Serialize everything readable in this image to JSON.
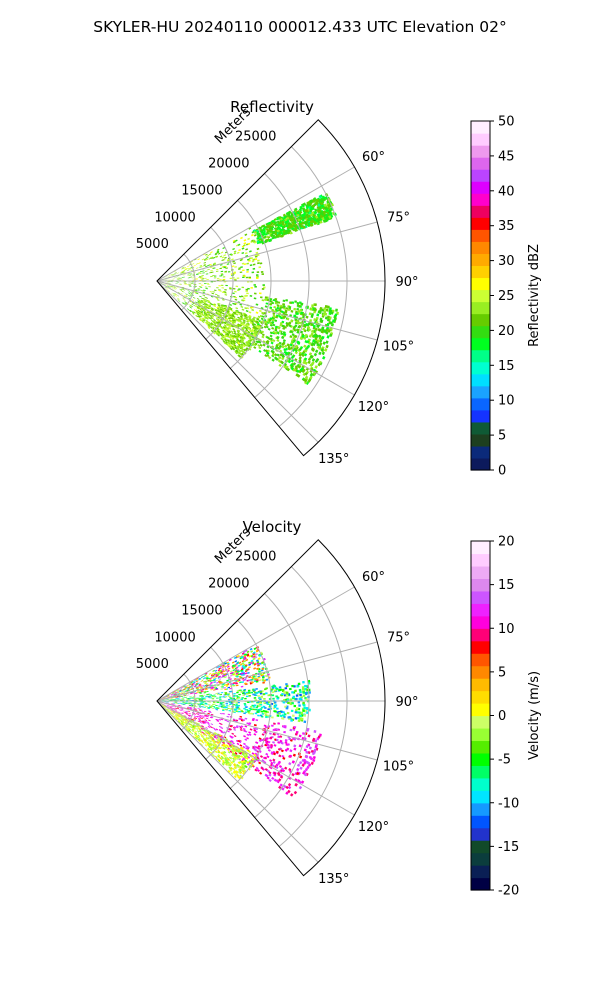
{
  "suptitle": "SKYLER-HU  20240110  000012.433 UTC Elevation 02°",
  "panel_labels": {
    "range_axis": "Meters"
  },
  "colors": {
    "grid": "#b0b0b0",
    "frame": "#000000",
    "reflectivity_cmap": [
      "#0c1a5c",
      "#0b2a7a",
      "#1d3f1f",
      "#0f5a35",
      "#1533ff",
      "#0a66ff",
      "#1aa3ff",
      "#00dfff",
      "#00ffd0",
      "#00ff88",
      "#00ff20",
      "#33dd11",
      "#66cc00",
      "#99ee22",
      "#ccff33",
      "#ffff00",
      "#ffd000",
      "#ffaa00",
      "#ff8800",
      "#ff5500",
      "#ff0000",
      "#ee0060",
      "#ff00cc",
      "#dd00ff",
      "#bb44ff",
      "#dd66ee",
      "#ee99ee",
      "#ffccff",
      "#ffeeff"
    ],
    "velocity_cmap": [
      "#000044",
      "#0a1f55",
      "#0b3d3d",
      "#114a2a",
      "#2233cc",
      "#0055ff",
      "#1599ff",
      "#00e5ff",
      "#00ffcc",
      "#00ff66",
      "#00ff00",
      "#55ee00",
      "#99ff33",
      "#ccff66",
      "#ffff00",
      "#ffdd00",
      "#ffbb00",
      "#ff8800",
      "#ff5500",
      "#ff0000",
      "#ff0077",
      "#ff00dd",
      "#ee22ff",
      "#cc55ff",
      "#dd88ee",
      "#eeaaf5",
      "#ffccff",
      "#ffeeff"
    ]
  },
  "chart_data": [
    {
      "type": "heatmap",
      "title": "Reflectivity",
      "projection": "polar sector",
      "theta_ticks": [
        "60°",
        "75°",
        "90°",
        "105°",
        "120°",
        "135°"
      ],
      "theta_range_deg": [
        45,
        140
      ],
      "r_ticks": [
        "5000",
        "10000",
        "15000",
        "20000",
        "25000"
      ],
      "r_range": [
        0,
        30000
      ],
      "grid": true,
      "colorbar": {
        "label": "Reflectivity dBZ",
        "ticks": [
          "0",
          "5",
          "10",
          "15",
          "20",
          "25",
          "30",
          "35",
          "40",
          "45",
          "50"
        ],
        "range": [
          0,
          50
        ]
      },
      "features": [
        {
          "theta": [
            60,
            132
          ],
          "r": [
            0,
            14000
          ],
          "value": [
            19,
            27
          ]
        },
        {
          "theta": [
            62,
            70
          ],
          "r": [
            14000,
            25000
          ],
          "value": [
            17,
            23
          ]
        },
        {
          "theta": [
            98,
            124
          ],
          "r": [
            14000,
            24000
          ],
          "value": [
            18,
            24
          ]
        },
        {
          "theta": [
            110,
            132
          ],
          "r": [
            6000,
            15000
          ],
          "value": [
            21,
            25
          ]
        }
      ]
    },
    {
      "type": "heatmap",
      "title": "Velocity",
      "projection": "polar sector",
      "theta_ticks": [
        "60°",
        "75°",
        "90°",
        "105°",
        "120°",
        "135°"
      ],
      "theta_range_deg": [
        45,
        140
      ],
      "r_ticks": [
        "5000",
        "10000",
        "15000",
        "20000",
        "25000"
      ],
      "r_range": [
        0,
        30000
      ],
      "grid": true,
      "colorbar": {
        "label": "Velocity (m/s)",
        "ticks": [
          "-20",
          "-15",
          "-10",
          "-5",
          "0",
          "5",
          "10",
          "15",
          "20"
        ],
        "range": [
          -20,
          20
        ]
      },
      "features": [
        {
          "theta": [
            60,
            80
          ],
          "r": [
            0,
            15000
          ],
          "value": [
            -12,
            15
          ]
        },
        {
          "theta": [
            82,
            98
          ],
          "r": [
            0,
            20000
          ],
          "value": [
            -12,
            0
          ]
        },
        {
          "theta": [
            100,
            125
          ],
          "r": [
            0,
            22000
          ],
          "value": [
            8,
            14
          ]
        },
        {
          "theta": [
            118,
            134
          ],
          "r": [
            0,
            15000
          ],
          "value": [
            -3,
            2
          ]
        }
      ]
    }
  ]
}
